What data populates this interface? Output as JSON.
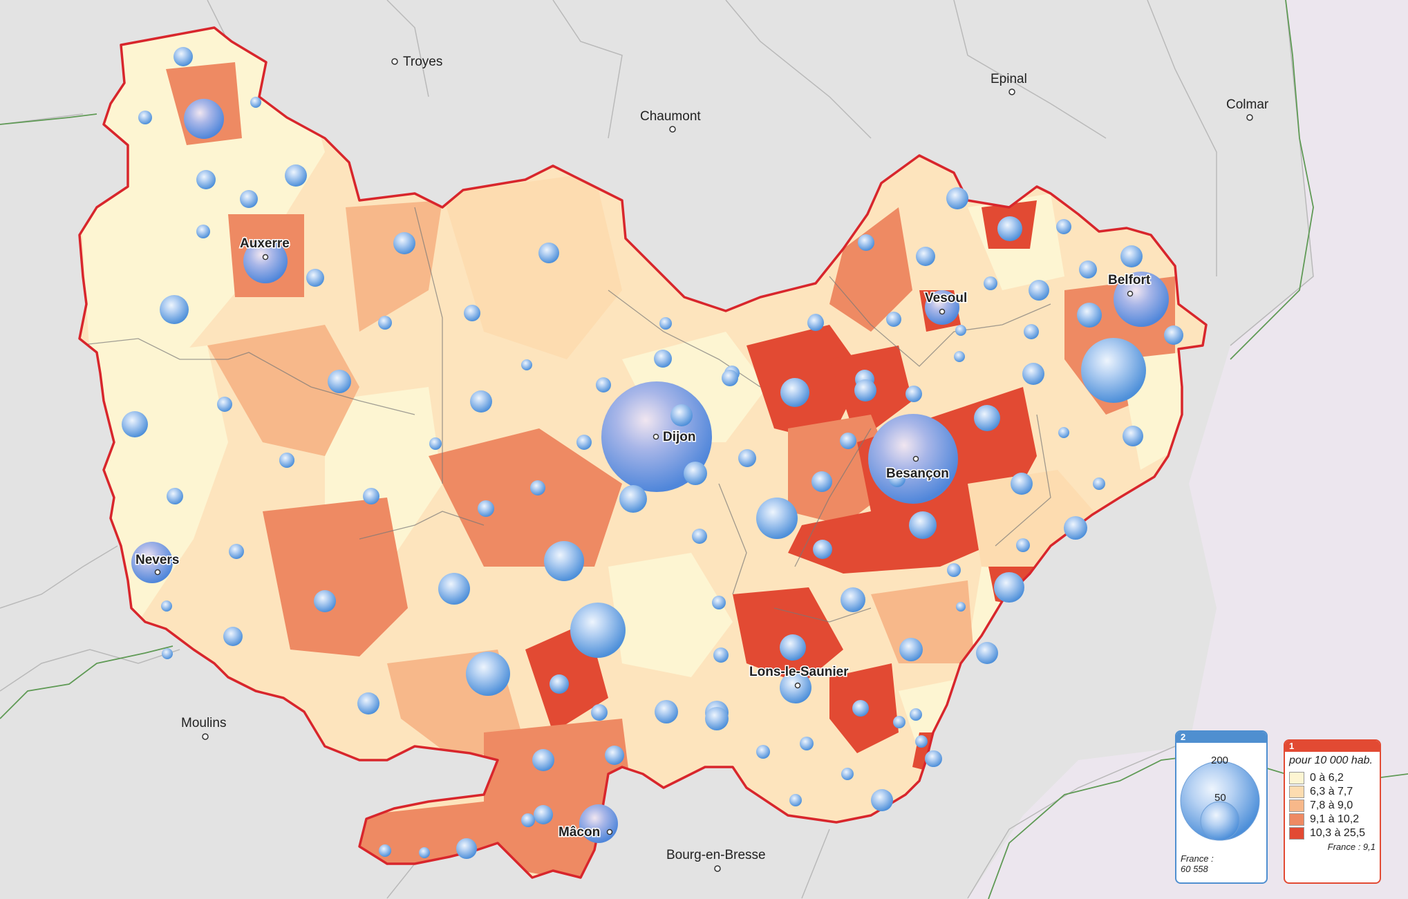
{
  "bubble_color": "#8fb8ea",
  "border_color": "#d8262c",
  "cities_outside": [
    {
      "name": "Troyes"
    },
    {
      "name": "Chaumont"
    },
    {
      "name": "Epinal"
    },
    {
      "name": "Colmar"
    },
    {
      "name": "Moulins"
    },
    {
      "name": "Bourg-en-Bresse"
    }
  ],
  "cities_region": [
    {
      "name": "Auxerre"
    },
    {
      "name": "Vesoul"
    },
    {
      "name": "Belfort"
    },
    {
      "name": "Dijon"
    },
    {
      "name": "Besançon"
    },
    {
      "name": "Nevers"
    },
    {
      "name": "Lons-le-Saunier"
    },
    {
      "name": "Mâcon"
    }
  ],
  "legend_size": {
    "number": "2",
    "large_value": "200",
    "small_value": "50",
    "france_label": "France :",
    "france_value": "60 558"
  },
  "legend_color": {
    "number": "1",
    "unit": "pour 10 000 hab.",
    "classes": [
      {
        "label": "0 à 6,2",
        "color": "#fdf5d2"
      },
      {
        "label": "6,3 à 7,7",
        "color": "#fddcb0"
      },
      {
        "label": "7,8 à 9,0",
        "color": "#f7b88a"
      },
      {
        "label": "9,1 à 10,2",
        "color": "#ee8a63"
      },
      {
        "label": "10,3 à 25,5",
        "color": "#e24a33"
      }
    ],
    "france_note": "France : 9,1"
  }
}
